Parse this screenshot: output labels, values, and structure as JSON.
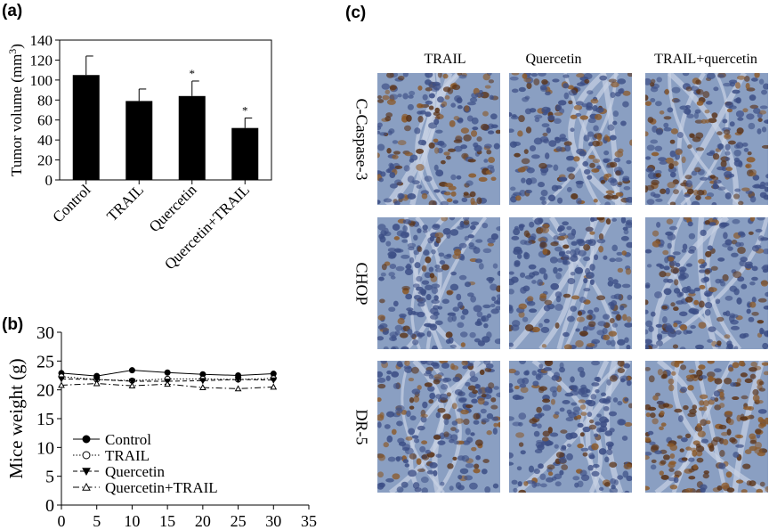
{
  "panel_a": {
    "label": "(a)",
    "chart_data": {
      "type": "bar",
      "categories": [
        "Control",
        "TRAIL",
        "Quercetin",
        "Quercetin+TRAIL"
      ],
      "values": [
        105,
        79,
        84,
        52
      ],
      "errors": [
        19,
        12,
        15,
        10
      ],
      "significance": [
        "",
        "",
        "*",
        "*"
      ],
      "ylabel": "Tumor volume (mm",
      "ylabel_sup": "3",
      "ylabel_end": ")",
      "ylim": [
        0,
        140
      ],
      "yticks": [
        0,
        20,
        40,
        60,
        80,
        100,
        120,
        140
      ],
      "bar_color": "#000000"
    }
  },
  "panel_b": {
    "label": "(b)",
    "chart_data": {
      "type": "line",
      "x": [
        0,
        5,
        10,
        15,
        20,
        25,
        30
      ],
      "series": [
        {
          "name": "Control",
          "values": [
            22.9,
            22.4,
            23.4,
            23.0,
            22.7,
            22.5,
            22.8
          ],
          "marker": "filled-circle",
          "dash": "solid"
        },
        {
          "name": "TRAIL",
          "values": [
            22.3,
            21.8,
            21.6,
            21.9,
            21.9,
            21.8,
            22.0
          ],
          "marker": "open-circle",
          "dash": "dotted"
        },
        {
          "name": "Quercetin",
          "values": [
            21.9,
            21.8,
            21.5,
            21.5,
            21.6,
            21.8,
            21.7
          ],
          "marker": "filled-triangle-down",
          "dash": "dashed"
        },
        {
          "name": "Quercetin+TRAIL",
          "values": [
            20.8,
            21.1,
            20.7,
            21.0,
            20.4,
            20.2,
            20.5
          ],
          "marker": "open-triangle-up",
          "dash": "dash-dot"
        }
      ],
      "ylabel": "Mice weight (g)",
      "xlabel": "",
      "xlim": [
        0,
        35
      ],
      "ylim": [
        0,
        30
      ],
      "xticks": [
        0,
        5,
        10,
        15,
        20,
        25,
        30,
        35
      ],
      "yticks": [
        0,
        5,
        10,
        15,
        20,
        25,
        30
      ],
      "legend_position": "bottom-left"
    }
  },
  "panel_c": {
    "label": "(c)",
    "columns": [
      "TRAIL",
      "Quercetin",
      "TRAIL+quercetin"
    ],
    "rows": [
      "C-Caspase-3",
      "CHOP",
      "DR-5"
    ],
    "stain_colors": {
      "background": "#8a9fc2",
      "nucleus": "#3d4f86",
      "brown": "#8b5a2b",
      "dark_brown": "#5a3318"
    }
  }
}
